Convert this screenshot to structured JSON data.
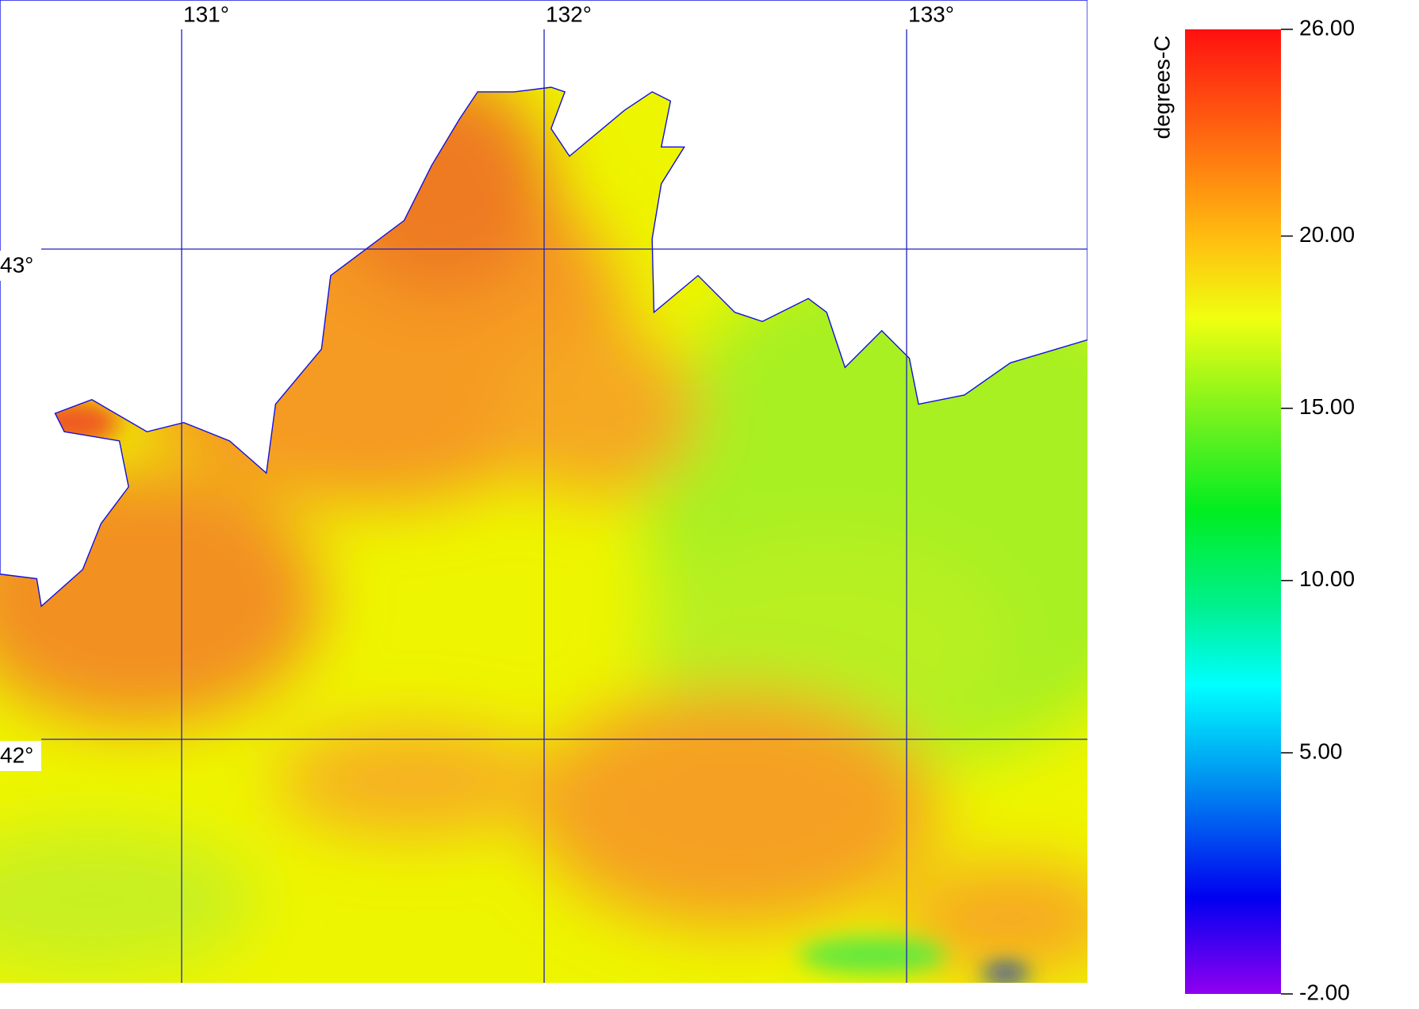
{
  "map": {
    "longitudes": [
      {
        "value": 131,
        "label": "131°"
      },
      {
        "value": 132,
        "label": "132°"
      },
      {
        "value": 133,
        "label": "133°"
      }
    ],
    "latitudes": [
      {
        "value": 43,
        "label": "43°"
      },
      {
        "value": 42,
        "label": "42°"
      }
    ],
    "colorbar": {
      "label": "degrees-C",
      "range": [
        -2,
        26
      ],
      "ticks": [
        {
          "value": 26,
          "label": "26.00"
        },
        {
          "value": 20,
          "label": "20.00"
        },
        {
          "value": 15,
          "label": "15.00"
        },
        {
          "value": 10,
          "label": "10.00"
        },
        {
          "value": 5,
          "label": "5.00"
        },
        {
          "value": -2,
          "label": "-2.00"
        }
      ]
    }
  }
}
